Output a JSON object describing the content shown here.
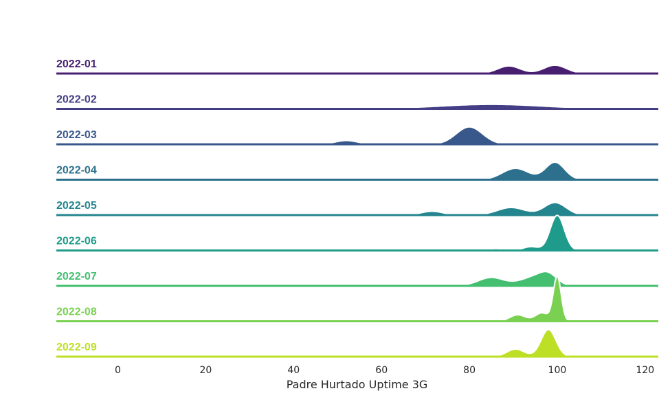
{
  "chart_data": {
    "type": "area",
    "subtype": "ridgeline",
    "xlabel": "Padre Hurtado Uptime 3G",
    "xlim": [
      -14,
      123
    ],
    "xticks": [
      "0",
      "20",
      "40",
      "60",
      "80",
      "100",
      "120"
    ],
    "grid": false,
    "series": [
      {
        "name": "2022-01",
        "color": "#481f70",
        "peaks": [
          [
            89,
            0.2,
            2.6
          ],
          [
            99.5,
            0.22,
            2.6
          ]
        ]
      },
      {
        "name": "2022-02",
        "color": "#433e85",
        "peaks": [
          [
            85,
            0.12,
            12
          ]
        ]
      },
      {
        "name": "2022-03",
        "color": "#38588c",
        "peaks": [
          [
            52,
            0.1,
            2.5
          ],
          [
            80,
            0.46,
            3
          ]
        ]
      },
      {
        "name": "2022-04",
        "color": "#2d708e",
        "peaks": [
          [
            69,
            0.03,
            1.5
          ],
          [
            90.5,
            0.3,
            3
          ],
          [
            99.5,
            0.46,
            2.2
          ]
        ]
      },
      {
        "name": "2022-05",
        "color": "#25858e",
        "peaks": [
          [
            71.5,
            0.1,
            2.5
          ],
          [
            89.5,
            0.2,
            3.2
          ],
          [
            99.5,
            0.33,
            2.5
          ]
        ]
      },
      {
        "name": "2022-06",
        "color": "#1e9b8a",
        "peaks": [
          [
            86,
            0.05,
            1.2
          ],
          [
            94,
            0.1,
            1.8
          ],
          [
            100,
            0.93,
            1.6
          ]
        ]
      },
      {
        "name": "2022-07",
        "color": "#2ab07f",
        "peaks": [
          [
            85,
            0.22,
            3
          ],
          [
            94.5,
            0.22,
            3
          ],
          [
            98,
            0.25,
            2
          ]
        ]
      },
      {
        "name": "2022-08",
        "color": "#52c569",
        "peaks": [
          [
            84,
            0.03,
            0.8
          ],
          [
            91,
            0.17,
            1.8
          ],
          [
            96.5,
            0.22,
            1.5
          ],
          [
            100,
            1.18,
            0.9
          ]
        ]
      },
      {
        "name": "2022-09",
        "color": "#86d549",
        "peaks": [
          [
            90.5,
            0.2,
            2
          ],
          [
            98,
            0.72,
            1.7
          ]
        ]
      }
    ]
  }
}
